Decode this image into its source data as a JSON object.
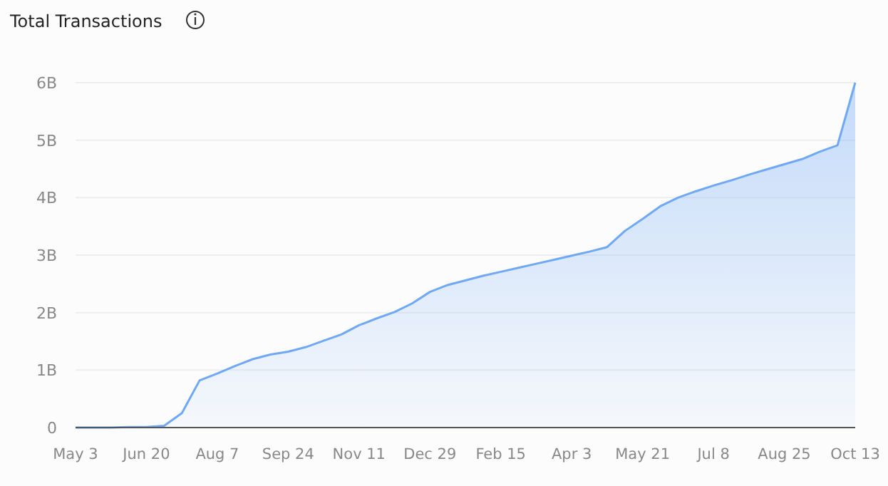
{
  "chart_data": {
    "type": "area",
    "title": "Total Transactions",
    "categories": [
      "May 3",
      null,
      null,
      null,
      "Jun 20",
      null,
      null,
      null,
      "Aug 7",
      null,
      null,
      null,
      "Sep 24",
      null,
      null,
      null,
      "Nov 11",
      null,
      null,
      null,
      "Dec 29",
      null,
      null,
      null,
      "Feb 15",
      null,
      null,
      null,
      "Apr 3",
      null,
      null,
      null,
      "May 21",
      null,
      null,
      null,
      "Jul 8",
      null,
      null,
      null,
      "Aug 25",
      null,
      null,
      null,
      "Oct 13"
    ],
    "series": [
      {
        "color": "#6fa8f5",
        "values": [
          0,
          0,
          0,
          0.01,
          0.01,
          0.03,
          0.25,
          0.82,
          0.94,
          1.07,
          1.19,
          1.27,
          1.32,
          1.4,
          1.51,
          1.62,
          1.78,
          1.9,
          2.01,
          2.16,
          2.36,
          2.48,
          2.56,
          2.64,
          2.71,
          2.78,
          2.85,
          2.92,
          2.99,
          3.06,
          3.14,
          3.42,
          3.63,
          3.85,
          4.0,
          4.11,
          4.21,
          4.3,
          4.4,
          4.49,
          4.58,
          4.67,
          4.8,
          4.91,
          6.0
        ]
      }
    ],
    "ylim": [
      0,
      6
    ],
    "yticks": [
      0,
      {
        "value": 1,
        "label": "1B"
      },
      {
        "value": 2,
        "label": "2B"
      },
      {
        "value": 3,
        "label": "3B"
      },
      {
        "value": 4,
        "label": "4B"
      },
      {
        "value": 5,
        "label": "5B"
      },
      {
        "value": 6,
        "label": "6B"
      }
    ],
    "grid": "y",
    "marker": "none",
    "line_style": "solid"
  }
}
